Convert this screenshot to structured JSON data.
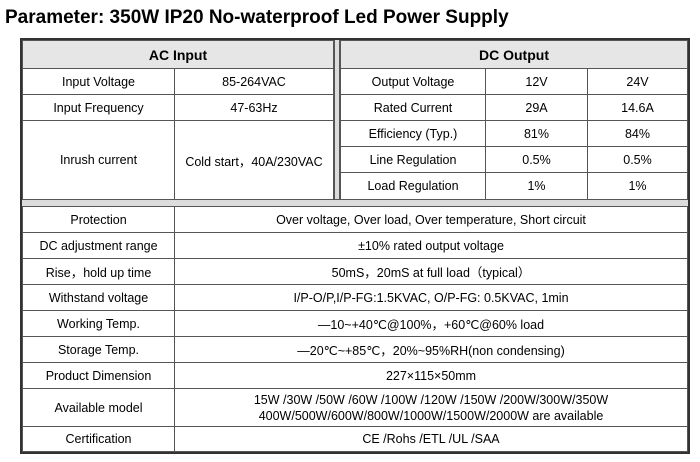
{
  "title": "Parameter: 350W IP20 No-waterproof Led Power Supply",
  "ac_input": {
    "header": "AC Input",
    "rows": [
      {
        "label": "Input Voltage",
        "value": "85-264VAC"
      },
      {
        "label": "Input Frequency",
        "value": "47-63Hz"
      },
      {
        "label": "Inrush current",
        "value": "Cold start，40A/230VAC"
      }
    ]
  },
  "dc_output": {
    "header": "DC Output",
    "rows": [
      {
        "label": "Output Voltage",
        "v12": "12V",
        "v24": "24V"
      },
      {
        "label": "Rated Current",
        "v12": "29A",
        "v24": "14.6A"
      },
      {
        "label": "Efficiency (Typ.)",
        "v12": "81%",
        "v24": "84%"
      },
      {
        "label": "Line Regulation",
        "v12": "0.5%",
        "v24": "0.5%"
      },
      {
        "label": "Load Regulation",
        "v12": "1%",
        "v24": "1%"
      }
    ]
  },
  "specs": [
    {
      "label": "Protection",
      "value": "Over voltage, Over load, Over temperature, Short circuit"
    },
    {
      "label": "DC adjustment range",
      "value": "±10% rated output voltage"
    },
    {
      "label": "Rise，hold up time",
      "value": "50mS，20mS at full load（typical）"
    },
    {
      "label": "Withstand voltage",
      "value": "I/P-O/P,I/P-FG:1.5KVAC, O/P-FG: 0.5KVAC, 1min"
    },
    {
      "label": "Working Temp.",
      "value": "—10~+40℃@100%，+60℃@60% load"
    },
    {
      "label": "Storage Temp.",
      "value": "—20℃~+85℃，20%~95%RH(non condensing)"
    },
    {
      "label": "Product Dimension",
      "value": "227×115×50mm"
    },
    {
      "label": "Available model",
      "value_line1": "15W /30W /50W /60W /100W /120W /150W /200W/300W/350W",
      "value_line2": "400W/500W/600W/800W/1000W/1500W/2000W  are available"
    },
    {
      "label": "Certification",
      "value": "CE /Rohs /ETL /UL /SAA"
    }
  ]
}
